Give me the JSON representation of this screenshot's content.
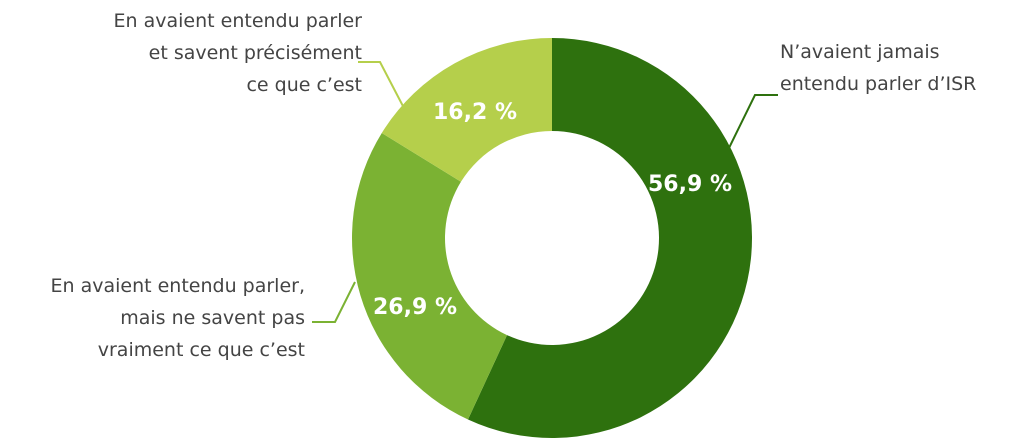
{
  "chart_data": {
    "type": "donut",
    "categories": [
      [
        "N’avaient jamais",
        "entendu parler d’ISR"
      ],
      [
        "En avaient entendu parler,",
        "mais ne savent pas",
        "vraiment ce que c’est"
      ],
      [
        "En avaient entendu parler",
        "et savent précisément",
        "ce que c’est"
      ]
    ],
    "values": [
      56.9,
      26.9,
      16.2
    ],
    "value_labels": [
      "56,9 %",
      "26,9 %",
      "16,2 %"
    ],
    "colors": [
      "#2e710e",
      "#7bb233",
      "#b5cf4b"
    ]
  }
}
